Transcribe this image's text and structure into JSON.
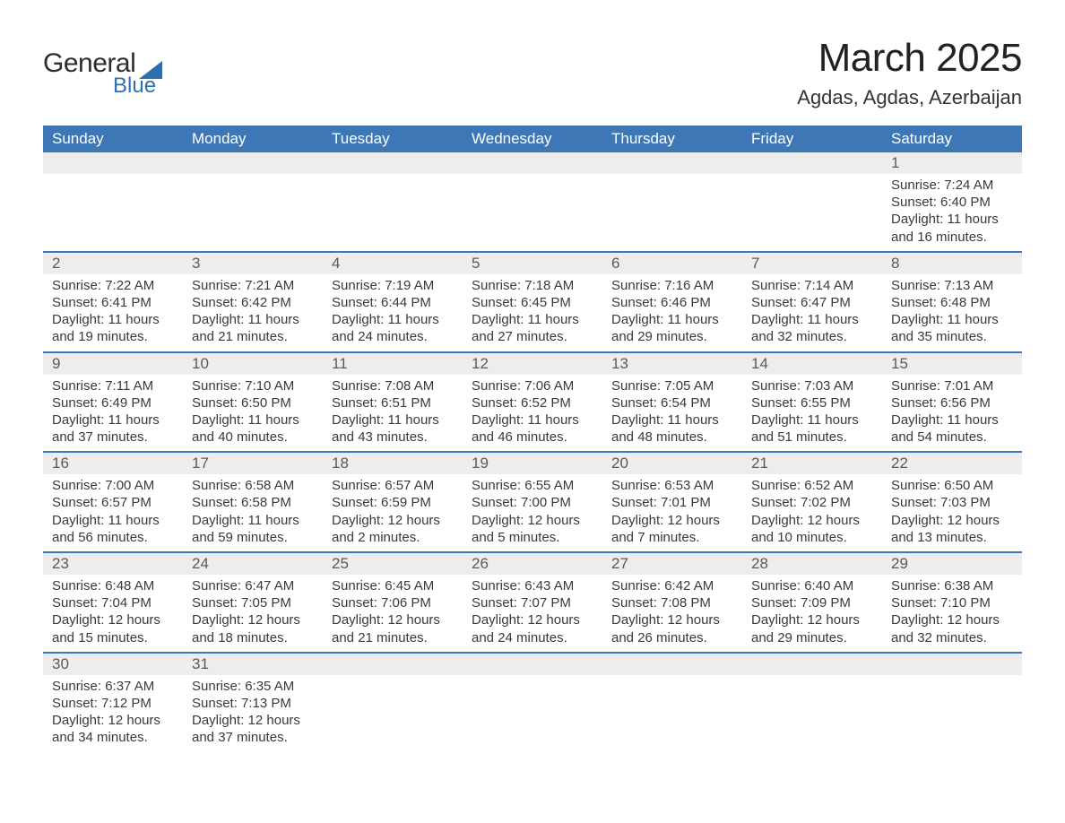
{
  "brand": {
    "name1": "General",
    "name2": "Blue",
    "triangle_color": "#2f6fb0"
  },
  "title": {
    "month": "March 2025",
    "location": "Agdas, Agdas, Azerbaijan"
  },
  "theme": {
    "header_bg": "#3d77b6",
    "header_text": "#ffffff",
    "daynum_bg": "#ededed",
    "daynum_text": "#5a5a5a",
    "body_text": "#3a3a3a",
    "row_border": "#3d77b6",
    "page_bg": "#ffffff",
    "title_fontsize": 44,
    "location_fontsize": 22,
    "dayheader_fontsize": 17,
    "body_fontsize": 15
  },
  "day_headers": [
    "Sunday",
    "Monday",
    "Tuesday",
    "Wednesday",
    "Thursday",
    "Friday",
    "Saturday"
  ],
  "weeks": [
    [
      null,
      null,
      null,
      null,
      null,
      null,
      {
        "n": "1",
        "sunrise": "7:24 AM",
        "sunset": "6:40 PM",
        "dl1": "11 hours",
        "dl2": "and 16 minutes."
      }
    ],
    [
      {
        "n": "2",
        "sunrise": "7:22 AM",
        "sunset": "6:41 PM",
        "dl1": "11 hours",
        "dl2": "and 19 minutes."
      },
      {
        "n": "3",
        "sunrise": "7:21 AM",
        "sunset": "6:42 PM",
        "dl1": "11 hours",
        "dl2": "and 21 minutes."
      },
      {
        "n": "4",
        "sunrise": "7:19 AM",
        "sunset": "6:44 PM",
        "dl1": "11 hours",
        "dl2": "and 24 minutes."
      },
      {
        "n": "5",
        "sunrise": "7:18 AM",
        "sunset": "6:45 PM",
        "dl1": "11 hours",
        "dl2": "and 27 minutes."
      },
      {
        "n": "6",
        "sunrise": "7:16 AM",
        "sunset": "6:46 PM",
        "dl1": "11 hours",
        "dl2": "and 29 minutes."
      },
      {
        "n": "7",
        "sunrise": "7:14 AM",
        "sunset": "6:47 PM",
        "dl1": "11 hours",
        "dl2": "and 32 minutes."
      },
      {
        "n": "8",
        "sunrise": "7:13 AM",
        "sunset": "6:48 PM",
        "dl1": "11 hours",
        "dl2": "and 35 minutes."
      }
    ],
    [
      {
        "n": "9",
        "sunrise": "7:11 AM",
        "sunset": "6:49 PM",
        "dl1": "11 hours",
        "dl2": "and 37 minutes."
      },
      {
        "n": "10",
        "sunrise": "7:10 AM",
        "sunset": "6:50 PM",
        "dl1": "11 hours",
        "dl2": "and 40 minutes."
      },
      {
        "n": "11",
        "sunrise": "7:08 AM",
        "sunset": "6:51 PM",
        "dl1": "11 hours",
        "dl2": "and 43 minutes."
      },
      {
        "n": "12",
        "sunrise": "7:06 AM",
        "sunset": "6:52 PM",
        "dl1": "11 hours",
        "dl2": "and 46 minutes."
      },
      {
        "n": "13",
        "sunrise": "7:05 AM",
        "sunset": "6:54 PM",
        "dl1": "11 hours",
        "dl2": "and 48 minutes."
      },
      {
        "n": "14",
        "sunrise": "7:03 AM",
        "sunset": "6:55 PM",
        "dl1": "11 hours",
        "dl2": "and 51 minutes."
      },
      {
        "n": "15",
        "sunrise": "7:01 AM",
        "sunset": "6:56 PM",
        "dl1": "11 hours",
        "dl2": "and 54 minutes."
      }
    ],
    [
      {
        "n": "16",
        "sunrise": "7:00 AM",
        "sunset": "6:57 PM",
        "dl1": "11 hours",
        "dl2": "and 56 minutes."
      },
      {
        "n": "17",
        "sunrise": "6:58 AM",
        "sunset": "6:58 PM",
        "dl1": "11 hours",
        "dl2": "and 59 minutes."
      },
      {
        "n": "18",
        "sunrise": "6:57 AM",
        "sunset": "6:59 PM",
        "dl1": "12 hours",
        "dl2": "and 2 minutes."
      },
      {
        "n": "19",
        "sunrise": "6:55 AM",
        "sunset": "7:00 PM",
        "dl1": "12 hours",
        "dl2": "and 5 minutes."
      },
      {
        "n": "20",
        "sunrise": "6:53 AM",
        "sunset": "7:01 PM",
        "dl1": "12 hours",
        "dl2": "and 7 minutes."
      },
      {
        "n": "21",
        "sunrise": "6:52 AM",
        "sunset": "7:02 PM",
        "dl1": "12 hours",
        "dl2": "and 10 minutes."
      },
      {
        "n": "22",
        "sunrise": "6:50 AM",
        "sunset": "7:03 PM",
        "dl1": "12 hours",
        "dl2": "and 13 minutes."
      }
    ],
    [
      {
        "n": "23",
        "sunrise": "6:48 AM",
        "sunset": "7:04 PM",
        "dl1": "12 hours",
        "dl2": "and 15 minutes."
      },
      {
        "n": "24",
        "sunrise": "6:47 AM",
        "sunset": "7:05 PM",
        "dl1": "12 hours",
        "dl2": "and 18 minutes."
      },
      {
        "n": "25",
        "sunrise": "6:45 AM",
        "sunset": "7:06 PM",
        "dl1": "12 hours",
        "dl2": "and 21 minutes."
      },
      {
        "n": "26",
        "sunrise": "6:43 AM",
        "sunset": "7:07 PM",
        "dl1": "12 hours",
        "dl2": "and 24 minutes."
      },
      {
        "n": "27",
        "sunrise": "6:42 AM",
        "sunset": "7:08 PM",
        "dl1": "12 hours",
        "dl2": "and 26 minutes."
      },
      {
        "n": "28",
        "sunrise": "6:40 AM",
        "sunset": "7:09 PM",
        "dl1": "12 hours",
        "dl2": "and 29 minutes."
      },
      {
        "n": "29",
        "sunrise": "6:38 AM",
        "sunset": "7:10 PM",
        "dl1": "12 hours",
        "dl2": "and 32 minutes."
      }
    ],
    [
      {
        "n": "30",
        "sunrise": "6:37 AM",
        "sunset": "7:12 PM",
        "dl1": "12 hours",
        "dl2": "and 34 minutes."
      },
      {
        "n": "31",
        "sunrise": "6:35 AM",
        "sunset": "7:13 PM",
        "dl1": "12 hours",
        "dl2": "and 37 minutes."
      },
      null,
      null,
      null,
      null,
      null
    ]
  ],
  "labels": {
    "sunrise": "Sunrise: ",
    "sunset": "Sunset: ",
    "daylight": "Daylight: "
  }
}
